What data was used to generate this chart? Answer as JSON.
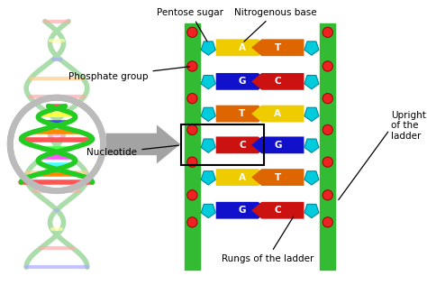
{
  "background_color": "#ffffff",
  "green_bar_color": "#33bb33",
  "phosphate_color": "#ee2222",
  "sugar_color": "#00ccdd",
  "sugar_edge_color": "#008899",
  "base_pairs": [
    {
      "left": "A",
      "right": "T",
      "left_color": "#eecc00",
      "right_color": "#dd6600"
    },
    {
      "left": "G",
      "right": "C",
      "left_color": "#1111cc",
      "right_color": "#cc1111"
    },
    {
      "left": "T",
      "right": "A",
      "left_color": "#dd6600",
      "right_color": "#eecc00"
    },
    {
      "left": "C",
      "right": "G",
      "left_color": "#cc1111",
      "right_color": "#1111cc"
    },
    {
      "left": "A",
      "right": "T",
      "left_color": "#eecc00",
      "right_color": "#dd6600"
    },
    {
      "left": "G",
      "right": "C",
      "left_color": "#1111cc",
      "right_color": "#cc1111"
    }
  ],
  "labels": {
    "pentose_sugar": "Pentose sugar",
    "nitrogenous_base": "Nitrogenous base",
    "phosphate_group": "Phosphate group",
    "nucleotide": "Nucleotide",
    "rungs": "Rungs of the ladder",
    "upright": "Upright\nof the\nladder"
  },
  "arrow_color": "#999999",
  "nucleotide_box_color": "#000000",
  "helix_colors": [
    "#ff6666",
    "#ffff88",
    "#4444ff",
    "#ff9900",
    "#ff4444",
    "#88ff88",
    "#ff88ff",
    "#88ffff",
    "#ffaa00",
    "#ff5555",
    "#5555ff",
    "#ffff44"
  ],
  "helix_strand_color": "#88dd88",
  "circle_bg_color": "#bbbbbb"
}
